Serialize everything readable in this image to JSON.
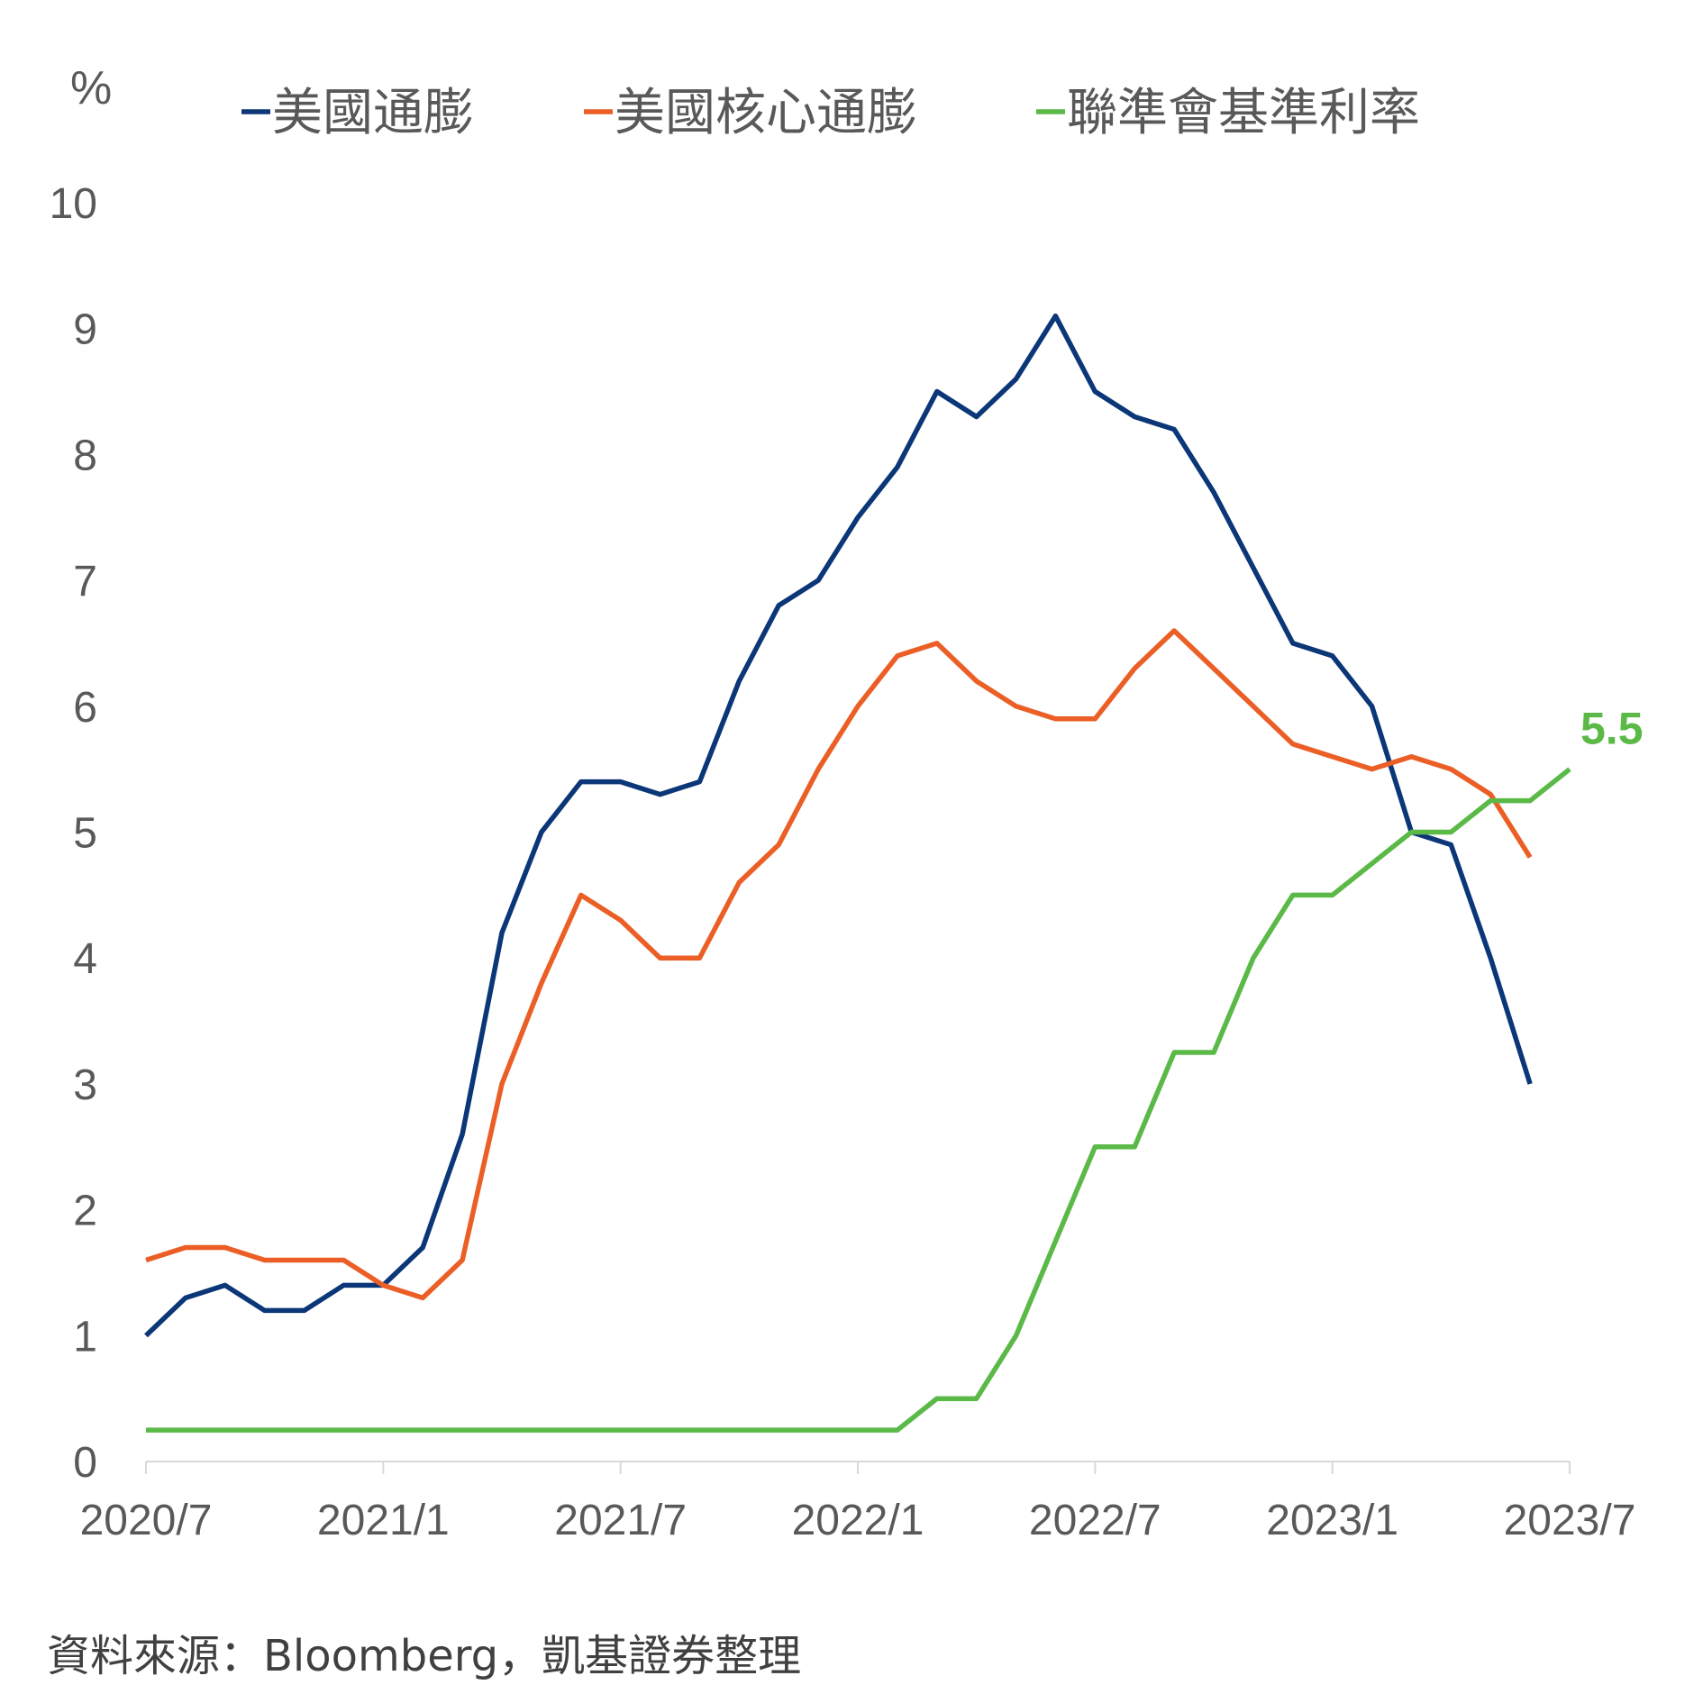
{
  "chart_data": {
    "type": "line",
    "unit": "%",
    "ylim": [
      0,
      10
    ],
    "yticks": [
      0,
      1,
      2,
      3,
      4,
      5,
      6,
      7,
      8,
      9,
      10
    ],
    "xlim": [
      "2020-07",
      "2023-07"
    ],
    "xticks": [
      {
        "date": "2020-07",
        "label": "2020/7"
      },
      {
        "date": "2021-01",
        "label": "2021/1"
      },
      {
        "date": "2021-07",
        "label": "2021/7"
      },
      {
        "date": "2022-01",
        "label": "2022/1"
      },
      {
        "date": "2022-07",
        "label": "2022/7"
      },
      {
        "date": "2023-01",
        "label": "2023/1"
      },
      {
        "date": "2023-07",
        "label": "2023/7"
      }
    ],
    "legend_position": "top",
    "grid": false,
    "series": [
      {
        "name": "美國通膨",
        "color": "#0B3677",
        "x": [
          "2020-07",
          "2020-08",
          "2020-09",
          "2020-10",
          "2020-11",
          "2020-12",
          "2021-01",
          "2021-02",
          "2021-03",
          "2021-04",
          "2021-05",
          "2021-06",
          "2021-07",
          "2021-08",
          "2021-09",
          "2021-10",
          "2021-11",
          "2021-12",
          "2022-01",
          "2022-02",
          "2022-03",
          "2022-04",
          "2022-05",
          "2022-06",
          "2022-07",
          "2022-08",
          "2022-09",
          "2022-10",
          "2022-11",
          "2022-12",
          "2023-01",
          "2023-02",
          "2023-03",
          "2023-04",
          "2023-05",
          "2023-06"
        ],
        "values": [
          1.0,
          1.3,
          1.4,
          1.2,
          1.2,
          1.4,
          1.4,
          1.7,
          2.6,
          4.2,
          5.0,
          5.4,
          5.4,
          5.3,
          5.4,
          6.2,
          6.8,
          7.0,
          7.5,
          7.9,
          8.5,
          8.3,
          8.6,
          9.1,
          8.5,
          8.3,
          8.2,
          7.7,
          7.1,
          6.5,
          6.4,
          6.0,
          5.0,
          4.9,
          4.0,
          3.0
        ]
      },
      {
        "name": "美國核心通膨",
        "color": "#EB5F27",
        "x": [
          "2020-07",
          "2020-08",
          "2020-09",
          "2020-10",
          "2020-11",
          "2020-12",
          "2021-01",
          "2021-02",
          "2021-03",
          "2021-04",
          "2021-05",
          "2021-06",
          "2021-07",
          "2021-08",
          "2021-09",
          "2021-10",
          "2021-11",
          "2021-12",
          "2022-01",
          "2022-02",
          "2022-03",
          "2022-04",
          "2022-05",
          "2022-06",
          "2022-07",
          "2022-08",
          "2022-09",
          "2022-10",
          "2022-11",
          "2022-12",
          "2023-01",
          "2023-02",
          "2023-03",
          "2023-04",
          "2023-05",
          "2023-06"
        ],
        "values": [
          1.6,
          1.7,
          1.7,
          1.6,
          1.6,
          1.6,
          1.4,
          1.3,
          1.6,
          3.0,
          3.8,
          4.5,
          4.3,
          4.0,
          4.0,
          4.6,
          4.9,
          5.5,
          6.0,
          6.4,
          6.5,
          6.2,
          6.0,
          5.9,
          5.9,
          6.3,
          6.6,
          6.3,
          6.0,
          5.7,
          5.6,
          5.5,
          5.6,
          5.5,
          5.3,
          4.8
        ]
      },
      {
        "name": "聯準會基準利率",
        "color": "#5BB947",
        "x": [
          "2020-07",
          "2020-08",
          "2020-09",
          "2020-10",
          "2020-11",
          "2020-12",
          "2021-01",
          "2021-02",
          "2021-03",
          "2021-04",
          "2021-05",
          "2021-06",
          "2021-07",
          "2021-08",
          "2021-09",
          "2021-10",
          "2021-11",
          "2021-12",
          "2022-01",
          "2022-02",
          "2022-03",
          "2022-04",
          "2022-05",
          "2022-06",
          "2022-07",
          "2022-08",
          "2022-09",
          "2022-10",
          "2022-11",
          "2022-12",
          "2023-01",
          "2023-02",
          "2023-03",
          "2023-04",
          "2023-05",
          "2023-06",
          "2023-07"
        ],
        "values": [
          0.25,
          0.25,
          0.25,
          0.25,
          0.25,
          0.25,
          0.25,
          0.25,
          0.25,
          0.25,
          0.25,
          0.25,
          0.25,
          0.25,
          0.25,
          0.25,
          0.25,
          0.25,
          0.25,
          0.25,
          0.5,
          0.5,
          1.0,
          1.75,
          2.5,
          2.5,
          3.25,
          3.25,
          4.0,
          4.5,
          4.5,
          4.75,
          5.0,
          5.0,
          5.25,
          5.25,
          5.5
        ],
        "end_label": "5.5"
      }
    ]
  },
  "source_note": "資料來源：Bloomberg，凱基證券整理"
}
